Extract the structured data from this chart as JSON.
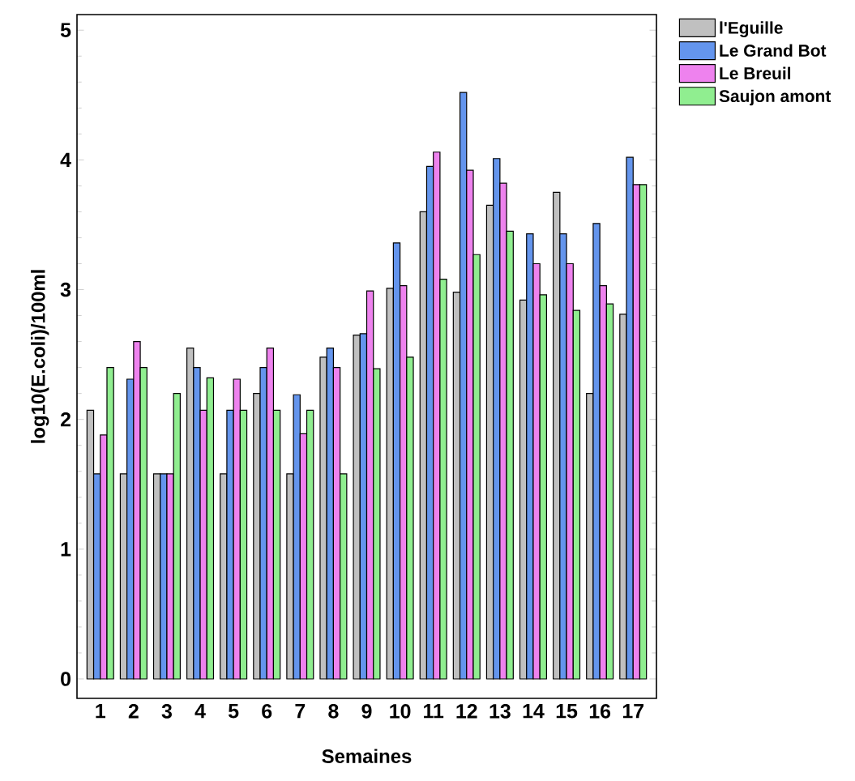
{
  "chart_data": {
    "type": "bar",
    "xlabel": "Semaines",
    "ylabel": "log10(E.coli)/100ml",
    "categories": [
      "1",
      "2",
      "3",
      "4",
      "5",
      "6",
      "7",
      "8",
      "9",
      "10",
      "11",
      "12",
      "13",
      "14",
      "15",
      "16",
      "17"
    ],
    "series": [
      {
        "name": "l'Eguille",
        "color": "#c0c0c0",
        "values": [
          2.07,
          1.58,
          1.58,
          2.55,
          1.58,
          2.2,
          1.58,
          2.48,
          2.65,
          3.01,
          3.6,
          2.98,
          3.65,
          2.92,
          3.75,
          2.2,
          2.81
        ]
      },
      {
        "name": "Le Grand Bot",
        "color": "#6495ed",
        "values": [
          1.58,
          2.31,
          1.58,
          2.4,
          2.07,
          2.4,
          2.19,
          2.55,
          2.66,
          3.36,
          3.95,
          4.52,
          4.01,
          3.43,
          3.43,
          3.51,
          4.02
        ]
      },
      {
        "name": "Le Breuil",
        "color": "#ee82ee",
        "values": [
          1.88,
          2.6,
          1.58,
          2.07,
          2.31,
          2.55,
          1.89,
          2.4,
          2.99,
          3.03,
          4.06,
          3.92,
          3.82,
          3.2,
          3.2,
          3.03,
          3.81
        ]
      },
      {
        "name": "Saujon amont",
        "color": "#90ee90",
        "values": [
          2.4,
          2.4,
          2.2,
          2.32,
          2.07,
          2.07,
          2.07,
          1.58,
          2.39,
          2.48,
          3.08,
          3.27,
          3.45,
          2.96,
          2.84,
          2.89,
          3.81
        ]
      }
    ],
    "ylim": [
      -0.15,
      5.12
    ],
    "yticks": [
      0,
      1,
      2,
      3,
      4,
      5
    ],
    "legend": "right"
  }
}
